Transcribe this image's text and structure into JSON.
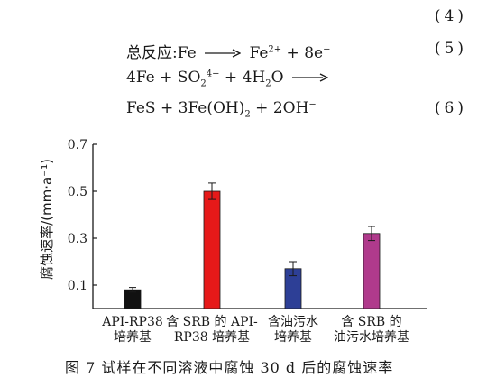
{
  "equations": [
    {
      "text_pre": "",
      "number": "(4)"
    },
    {
      "lhs": "总反应:Fe",
      "rhs_pre": "Fe",
      "rhs_sup": "2+",
      "rhs_post": " + 8e",
      "rhs_sup2": "−",
      "number": "(5)"
    },
    {
      "lhs_pre": "4Fe + SO",
      "lhs_sub": "2",
      "lhs_sup": "4−",
      "lhs_mid": " + 4H",
      "lhs_sub2": "2",
      "lhs_post": "O",
      "number": ""
    },
    {
      "text_pre": "FeS + 3Fe(OH)",
      "sub": "2",
      "text_post": " + 2OH",
      "sup": "−",
      "number": "(6)"
    }
  ],
  "chart_data": {
    "type": "bar",
    "ylabel": "腐蚀速率/(mm·a⁻¹)",
    "ylim": [
      0,
      0.7
    ],
    "yticks": [
      "0.1",
      "0.3",
      "0.5",
      "0.7"
    ],
    "ytick_values": [
      0.1,
      0.3,
      0.5,
      0.7
    ],
    "categories": [
      [
        "API-RP38",
        "培养基"
      ],
      [
        "含 SRB 的 API-",
        "RP38 培养基"
      ],
      [
        "含油污水",
        "培养基"
      ],
      [
        "含 SRB 的",
        "油污水培养基"
      ]
    ],
    "values": [
      0.08,
      0.5,
      0.17,
      0.32
    ],
    "errors": [
      0.01,
      0.035,
      0.03,
      0.03
    ],
    "colors": [
      "#111111",
      "#e61919",
      "#2d3f96",
      "#b03a8c"
    ]
  },
  "caption": "图 7   试样在不同溶液中腐蚀 30 d 后的腐蚀速率"
}
